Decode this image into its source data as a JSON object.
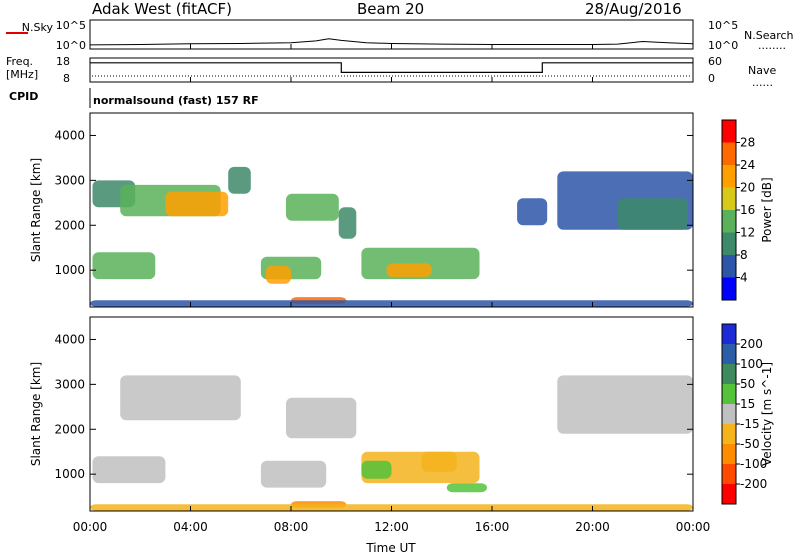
{
  "header": {
    "station": "Adak West (fitACF)",
    "beam": "Beam 20",
    "date": "28/Aug/2016"
  },
  "noise_panel": {
    "left_label": "N.Sky",
    "right_label": "N.Search",
    "left_ticks": [
      "10^5",
      "10^0"
    ],
    "right_ticks": [
      "10^5",
      "10^0"
    ],
    "right_legend_marker": "........"
  },
  "freq_panel": {
    "left_label_line1": "Freq.",
    "left_label_line2": "[MHz]",
    "left_ticks": [
      "18",
      "8"
    ],
    "right_label": "Nave",
    "right_ticks": [
      "60",
      "0"
    ],
    "right_legend_marker": "......"
  },
  "cpid_panel": {
    "label": "CPID",
    "text": "normalsound (fast) 157 RF"
  },
  "x_axis": {
    "title": "Time UT",
    "ticks": [
      "00:00",
      "04:00",
      "08:00",
      "12:00",
      "16:00",
      "20:00",
      "00:00"
    ]
  },
  "colors": {
    "power_scale": [
      "#0000ff",
      "#2d55a8",
      "#3d8a6a",
      "#59b159",
      "#d8c81a",
      "#ffa000",
      "#ff6a00",
      "#ff0000"
    ],
    "velocity_scale": [
      "#1c2bd6",
      "#2b5ea6",
      "#3e8a5d",
      "#54c23a",
      "#c0c0c0",
      "#f5b31c",
      "#ff8c00",
      "#ff4a00",
      "#ff0000"
    ],
    "ground_scatter": "#c0c0c0"
  },
  "chart_data": [
    {
      "type": "line",
      "panel": "noise",
      "title": "",
      "xlabel": "",
      "ylabel": "N.Sky",
      "ylim": [
        1,
        100000
      ],
      "log_scale": true,
      "x": [
        0,
        2,
        4,
        6,
        8,
        9,
        9.5,
        10,
        11,
        12,
        14,
        16,
        18,
        20,
        21,
        22,
        23,
        24
      ],
      "series": [
        {
          "name": "N.Sky",
          "values": [
            5,
            6,
            8,
            9,
            12,
            25,
            60,
            30,
            12,
            9,
            7,
            6,
            6,
            6,
            7,
            20,
            12,
            8
          ]
        }
      ]
    },
    {
      "type": "line",
      "panel": "frequency",
      "title": "",
      "xlabel": "",
      "ylabel": "Freq. [MHz]",
      "ylim": [
        8,
        18
      ],
      "x": [
        0,
        10,
        10,
        18,
        18,
        24
      ],
      "series": [
        {
          "name": "Freq.",
          "values": [
            16,
            16,
            12,
            12,
            16,
            16
          ]
        }
      ]
    },
    {
      "type": "heatmap",
      "panel": "power",
      "title": "",
      "xlabel": "Time UT",
      "ylabel": "Slant Range [km]",
      "xlim": [
        0,
        24
      ],
      "ylim": [
        180,
        4500
      ],
      "y_ticks": [
        1000,
        2000,
        3000,
        4000
      ],
      "colorbar": {
        "label": "Power [dB]",
        "range": [
          0,
          32
        ],
        "ticks": [
          4,
          8,
          12,
          16,
          20,
          24,
          28
        ]
      },
      "regions": [
        {
          "t0": 0.1,
          "t1": 2.6,
          "r0": 800,
          "r1": 1400,
          "level": 12
        },
        {
          "t0": 0.1,
          "t1": 1.8,
          "r0": 2400,
          "r1": 3000,
          "level": 10
        },
        {
          "t0": 1.2,
          "t1": 5.2,
          "r0": 2200,
          "r1": 2900,
          "level": 14
        },
        {
          "t0": 3.0,
          "t1": 5.5,
          "r0": 2200,
          "r1": 2750,
          "level": 20
        },
        {
          "t0": 5.5,
          "t1": 6.4,
          "r0": 2700,
          "r1": 3300,
          "level": 8
        },
        {
          "t0": 6.8,
          "t1": 9.2,
          "r0": 800,
          "r1": 1300,
          "level": 12
        },
        {
          "t0": 7.0,
          "t1": 8.0,
          "r0": 700,
          "r1": 1100,
          "level": 22
        },
        {
          "t0": 7.8,
          "t1": 9.9,
          "r0": 2100,
          "r1": 2700,
          "level": 12
        },
        {
          "t0": 9.9,
          "t1": 10.6,
          "r0": 1700,
          "r1": 2400,
          "level": 10
        },
        {
          "t0": 10.8,
          "t1": 15.5,
          "r0": 800,
          "r1": 1500,
          "level": 12
        },
        {
          "t0": 11.8,
          "t1": 13.6,
          "r0": 850,
          "r1": 1150,
          "level": 22
        },
        {
          "t0": 8.0,
          "t1": 10.2,
          "r0": 250,
          "r1": 400,
          "level": 24
        },
        {
          "t0": 0.0,
          "t1": 24.0,
          "r0": 190,
          "r1": 330,
          "level": 6
        },
        {
          "t0": 18.6,
          "t1": 24.0,
          "r0": 1900,
          "r1": 3200,
          "level": 6
        },
        {
          "t0": 21.0,
          "t1": 23.8,
          "r0": 1900,
          "r1": 2600,
          "level": 10
        },
        {
          "t0": 17.0,
          "t1": 18.2,
          "r0": 2000,
          "r1": 2600,
          "level": 6
        }
      ]
    },
    {
      "type": "heatmap",
      "panel": "velocity",
      "title": "",
      "xlabel": "Time UT",
      "ylabel": "Slant Range [km]",
      "xlim": [
        0,
        24
      ],
      "ylim": [
        180,
        4500
      ],
      "y_ticks": [
        1000,
        2000,
        3000,
        4000
      ],
      "colorbar": {
        "label": "Velocity [m s^-1]",
        "range": [
          -250,
          250
        ],
        "ticks": [
          -200,
          -100,
          -50,
          -15,
          15,
          50,
          100,
          200
        ]
      },
      "regions": [
        {
          "t0": 0.1,
          "t1": 3.0,
          "r0": 800,
          "r1": 1400,
          "value": 0,
          "ground_scatter": true
        },
        {
          "t0": 1.2,
          "t1": 6.0,
          "r0": 2200,
          "r1": 3200,
          "value": 0,
          "ground_scatter": true
        },
        {
          "t0": 6.8,
          "t1": 9.4,
          "r0": 700,
          "r1": 1300,
          "value": 0,
          "ground_scatter": true
        },
        {
          "t0": 7.8,
          "t1": 10.6,
          "r0": 1800,
          "r1": 2700,
          "value": 0,
          "ground_scatter": true
        },
        {
          "t0": 10.8,
          "t1": 15.5,
          "r0": 800,
          "r1": 1500,
          "value": -40
        },
        {
          "t0": 10.8,
          "t1": 12.0,
          "r0": 900,
          "r1": 1300,
          "value": 40
        },
        {
          "t0": 13.2,
          "t1": 14.6,
          "r0": 1050,
          "r1": 1500,
          "value": -45
        },
        {
          "t0": 14.2,
          "t1": 15.8,
          "r0": 600,
          "r1": 800,
          "value": 35
        },
        {
          "t0": 8.0,
          "t1": 10.2,
          "r0": 250,
          "r1": 400,
          "value": -60
        },
        {
          "t0": 18.6,
          "t1": 24.0,
          "r0": 1900,
          "r1": 3200,
          "value": 0,
          "ground_scatter": true
        },
        {
          "t0": 0.0,
          "t1": 24.0,
          "r0": 190,
          "r1": 330,
          "value": -30
        }
      ]
    }
  ]
}
